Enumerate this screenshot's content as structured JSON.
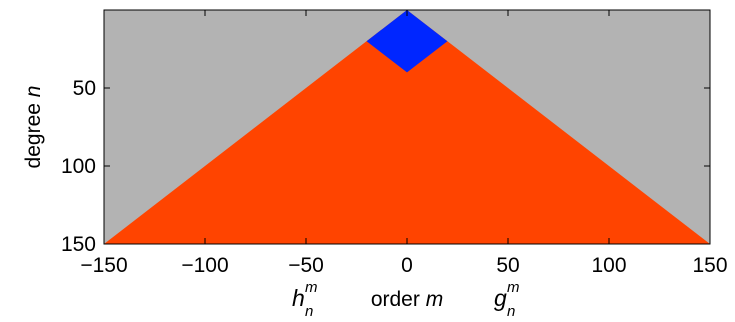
{
  "chart_data": {
    "type": "heatmap",
    "title": "",
    "xlabel": {
      "text": "order",
      "symbol": "m"
    },
    "ylabel": {
      "text": "degree",
      "symbol": "n"
    },
    "xlim": [
      -150,
      150
    ],
    "ylim": [
      0,
      150
    ],
    "y_inverted": true,
    "grid": false,
    "xticks": [
      "−150",
      "−100",
      "−50",
      "0",
      "50",
      "100",
      "150"
    ],
    "xtick_values": [
      -150,
      -100,
      -50,
      0,
      50,
      100,
      150
    ],
    "yticks": [
      "50",
      "100",
      "150"
    ],
    "ytick_values": [
      50,
      100,
      150
    ],
    "annotations": [
      {
        "base": "h",
        "superscript": "m",
        "subscript": "n",
        "x": -50
      },
      {
        "base": "g",
        "superscript": "m",
        "subscript": "n",
        "x": 50
      }
    ],
    "regions": [
      {
        "role": "background",
        "color": "#b3b3b3",
        "polygon": [
          [
            -150,
            0
          ],
          [
            150,
            0
          ],
          [
            150,
            150
          ],
          [
            -150,
            150
          ]
        ]
      },
      {
        "role": "triangle",
        "color": "#ff4400",
        "polygon": [
          [
            -150,
            150
          ],
          [
            0,
            0
          ],
          [
            150,
            150
          ]
        ]
      },
      {
        "role": "diamond",
        "color": "#0026ff",
        "polygon": [
          [
            0,
            0
          ],
          [
            20,
            20
          ],
          [
            0,
            40
          ],
          [
            -20,
            20
          ]
        ]
      }
    ]
  }
}
